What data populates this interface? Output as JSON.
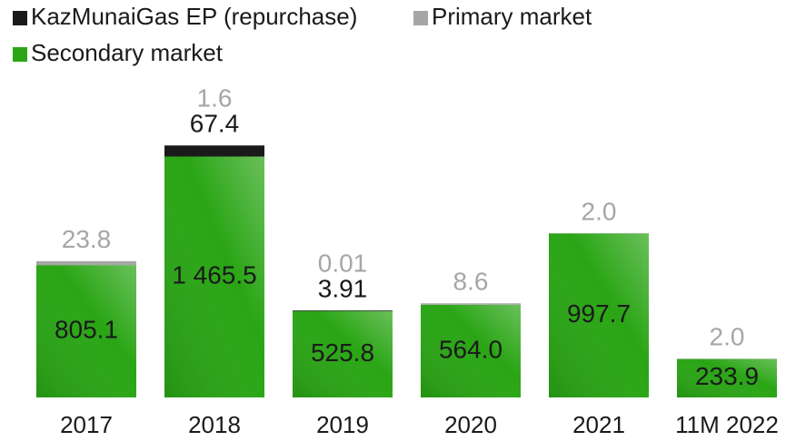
{
  "chart_data": {
    "type": "stacked_bar",
    "categories": [
      "2017",
      "2018",
      "2019",
      "2020",
      "2021",
      "11M 2022"
    ],
    "series": [
      {
        "name": "Secondary market",
        "color": "#2aa515",
        "values": [
          805.1,
          1465.5,
          525.8,
          564.0,
          997.7,
          233.9
        ],
        "value_labels": [
          "805.1",
          "1 465.5",
          "525.8",
          "564.0",
          "997.7",
          "233.9"
        ]
      },
      {
        "name": "KazMunaiGas EP (repurchase)",
        "color": "#1a1a1a",
        "values": [
          null,
          67.4,
          3.91,
          null,
          null,
          null
        ],
        "value_labels": [
          null,
          "67.4",
          "3.91",
          null,
          null,
          null
        ]
      },
      {
        "name": "Primary market",
        "color": "#a6a6a6",
        "values": [
          23.8,
          1.6,
          0.01,
          8.6,
          2.0,
          2.0
        ],
        "value_labels": [
          "23.8",
          "1.6",
          "0.01",
          "8.6",
          "2.0",
          "2.0"
        ]
      }
    ]
  }
}
